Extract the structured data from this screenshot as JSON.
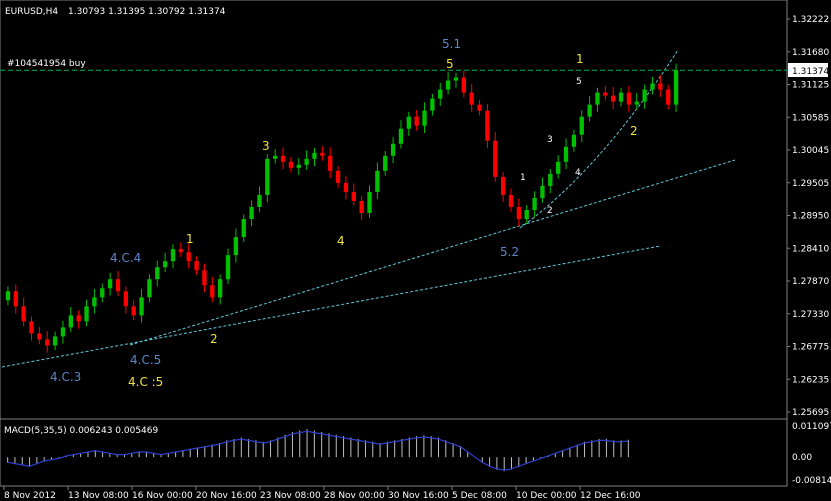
{
  "header": {
    "symbol": "EURUSD,H4",
    "ohlc": "1.30793 1.31395 1.30792 1.31374"
  },
  "order_line": {
    "label": "#104541954 buy",
    "price": 1.3137
  },
  "macd": {
    "label": "MACD(5,35,5) 0.006243 0.005469",
    "ticks": [
      "0.011097",
      "0.00",
      "-0.008143"
    ],
    "ylim": [
      -0.008143,
      0.011097
    ],
    "histogram": [
      -0.002,
      -0.0025,
      -0.003,
      -0.0035,
      -0.0025,
      -0.0015,
      -0.001,
      -0.0005,
      0.0005,
      0.001,
      0.0015,
      0.002,
      0.0025,
      0.002,
      0.0015,
      0.001,
      0.001,
      0.0015,
      0.002,
      0.002,
      0.0015,
      0.001,
      0.0015,
      0.002,
      0.0025,
      0.003,
      0.0035,
      0.004,
      0.0045,
      0.005,
      0.006,
      0.0065,
      0.007,
      0.0065,
      0.006,
      0.0055,
      0.006,
      0.007,
      0.008,
      0.009,
      0.0095,
      0.01,
      0.0095,
      0.009,
      0.0085,
      0.008,
      0.0075,
      0.007,
      0.0065,
      0.006,
      0.0055,
      0.005,
      0.0055,
      0.006,
      0.0065,
      0.007,
      0.0075,
      0.0078,
      0.0075,
      0.007,
      0.006,
      0.005,
      0.004,
      0.002,
      0.0,
      -0.002,
      -0.0035,
      -0.0045,
      -0.005,
      -0.0045,
      -0.0035,
      -0.0025,
      -0.0015,
      -0.0005,
      0.0005,
      0.0015,
      0.0025,
      0.0035,
      0.0045,
      0.0055,
      0.006,
      0.0065,
      0.0065,
      0.006,
      0.006,
      0.0062
    ],
    "colors": {
      "histogram": "#c0c0c0",
      "signal": "#2f3fcf"
    }
  },
  "chart_data": {
    "type": "candlestick",
    "ylim": [
      1.25695,
      1.32222
    ],
    "y_ticks": [
      "1.32222",
      "1.31680",
      "1.31125",
      "1.30585",
      "1.30045",
      "1.29505",
      "1.28950",
      "1.28410",
      "1.27870",
      "1.27330",
      "1.26775",
      "1.26235",
      "1.25695"
    ],
    "x_ticks": [
      "8 Nov 2012",
      "13 Nov 08:00",
      "16 Nov 00:00",
      "20 Nov 16:00",
      "23 Nov 08:00",
      "28 Nov 00:00",
      "30 Nov 16:00",
      "5 Dec 08:00",
      "10 Dec 00:00",
      "12 Dec 16:00"
    ],
    "current_price": "1.31374",
    "close": [
      1.277,
      1.2745,
      1.272,
      1.27,
      1.269,
      1.268,
      1.2695,
      1.271,
      1.273,
      1.272,
      1.2745,
      1.276,
      1.2775,
      1.279,
      1.277,
      1.2745,
      1.273,
      1.276,
      1.279,
      1.281,
      1.282,
      1.284,
      1.2835,
      1.282,
      1.2805,
      1.278,
      1.276,
      1.279,
      1.283,
      1.286,
      1.289,
      1.291,
      1.293,
      1.299,
      1.2995,
      1.2985,
      1.2975,
      1.298,
      1.299,
      1.3,
      1.2995,
      1.297,
      1.295,
      1.2935,
      1.292,
      1.29,
      1.2935,
      1.297,
      1.2995,
      1.3015,
      1.304,
      1.306,
      1.3045,
      1.307,
      1.309,
      1.3105,
      1.312,
      1.3125,
      1.31,
      1.308,
      1.307,
      1.302,
      1.296,
      1.293,
      1.291,
      1.289,
      1.2905,
      1.2925,
      1.2945,
      1.2965,
      1.2985,
      1.301,
      1.303,
      1.306,
      1.308,
      1.31,
      1.3095,
      1.3085,
      1.31,
      1.308,
      1.3085,
      1.3105,
      1.3115,
      1.3105,
      1.308,
      1.3137
    ],
    "colors": {
      "up": "#00c000",
      "down": "#ff0000",
      "grid": "#3a3a3a",
      "order_line": "#00b050",
      "trend": "#5fc8d8"
    }
  },
  "annotations": {
    "blue": [
      "5.1",
      "4.C.4",
      "4.C.5",
      "4.C.3",
      "5.2"
    ],
    "yellow": [
      "5",
      "3",
      "1",
      "2",
      "4",
      "4.C :5",
      "1",
      "2"
    ],
    "white": [
      "5",
      "3",
      "1",
      "4",
      "2"
    ]
  }
}
